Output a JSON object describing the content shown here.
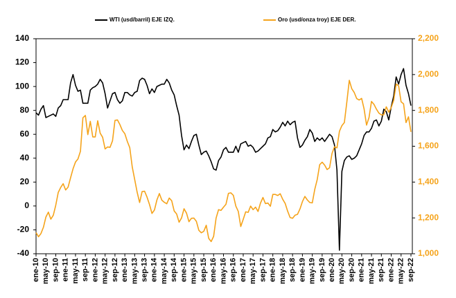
{
  "chart_data": {
    "type": "line",
    "categories": [
      "ene-10",
      null,
      null,
      null,
      "may-10",
      null,
      null,
      null,
      "sep-10",
      null,
      null,
      null,
      "ene-11",
      null,
      null,
      null,
      "may-11",
      null,
      null,
      null,
      "sep-11",
      null,
      null,
      null,
      "ene-12",
      null,
      null,
      null,
      "may-12",
      null,
      null,
      null,
      "sep-12",
      null,
      null,
      null,
      "ene-13",
      null,
      null,
      null,
      "may-13",
      null,
      null,
      null,
      "sep-13",
      null,
      null,
      null,
      "ene-14",
      null,
      null,
      null,
      "may-14",
      null,
      null,
      null,
      "sep-14",
      null,
      null,
      null,
      "ene-15",
      null,
      null,
      null,
      "may-15",
      null,
      null,
      null,
      "sep-15",
      null,
      null,
      null,
      "ene-16",
      null,
      null,
      null,
      "may-16",
      null,
      null,
      null,
      "sep-16",
      null,
      null,
      null,
      "ene-17",
      null,
      null,
      null,
      "may-17",
      null,
      null,
      null,
      "sep-17",
      null,
      null,
      null,
      "ene-18",
      null,
      null,
      null,
      "may-18",
      null,
      null,
      null,
      "sep-18",
      null,
      null,
      null,
      "ene-19",
      null,
      null,
      null,
      "may-19",
      null,
      null,
      null,
      "sep-19",
      null,
      null,
      null,
      "ene-20",
      null,
      null,
      null,
      "may-20",
      null,
      null,
      null,
      "sep-20",
      null,
      null,
      null,
      "ene-21",
      null,
      null,
      null,
      "may-21",
      null,
      null,
      null,
      "sep-21",
      null,
      null,
      null,
      "ene-22",
      null,
      null,
      null,
      "may-22",
      null,
      null,
      null,
      "sep-22"
    ],
    "series": [
      {
        "name": "WTI (usd/barril) EJE IZQ.",
        "color": "#000000",
        "axis": "y",
        "values": [
          78,
          76,
          81,
          84,
          74,
          75,
          76,
          77,
          75,
          82,
          84,
          89,
          89,
          89,
          103,
          110,
          101,
          96,
          97,
          86,
          86,
          86,
          97,
          99,
          100,
          102,
          106,
          103,
          94,
          82,
          88,
          94,
          95,
          89,
          86,
          88,
          95,
          95,
          93,
          92,
          95,
          96,
          105,
          107,
          106,
          101,
          94,
          98,
          95,
          100,
          101,
          102,
          102,
          106,
          103,
          97,
          93,
          84,
          76,
          59,
          47,
          51,
          48,
          54,
          59,
          60,
          51,
          43,
          45,
          46,
          42,
          37,
          31,
          30,
          38,
          41,
          47,
          49,
          45,
          45,
          45,
          50,
          45,
          52,
          53,
          54,
          50,
          51,
          49,
          45,
          46,
          48,
          50,
          52,
          57,
          58,
          64,
          62,
          63,
          66,
          70,
          67,
          71,
          68,
          70,
          71,
          57,
          49,
          51,
          55,
          58,
          64,
          61,
          54,
          57,
          55,
          57,
          54,
          57,
          60,
          58,
          51,
          30,
          -37,
          29,
          38,
          41,
          42,
          39,
          40,
          42,
          47,
          52,
          59,
          62,
          62,
          65,
          71,
          72,
          67,
          71,
          81,
          79,
          72,
          83,
          92,
          108,
          102,
          110,
          115,
          101,
          94,
          84
        ]
      },
      {
        "name": "Oro (usd/onza troy) EJE DER.",
        "color": "#f5a31a",
        "axis": "y2",
        "values": [
          1118,
          1095,
          1113,
          1148,
          1205,
          1232,
          1193,
          1215,
          1271,
          1342,
          1370,
          1391,
          1356,
          1372,
          1424,
          1474,
          1512,
          1529,
          1572,
          1759,
          1772,
          1665,
          1739,
          1652,
          1652,
          1742,
          1673,
          1650,
          1585,
          1596,
          1594,
          1630,
          1744,
          1747,
          1721,
          1688,
          1670,
          1627,
          1592,
          1485,
          1414,
          1343,
          1286,
          1347,
          1349,
          1316,
          1275,
          1225,
          1244,
          1300,
          1336,
          1299,
          1287,
          1279,
          1311,
          1296,
          1239,
          1222,
          1176,
          1200,
          1251,
          1227,
          1179,
          1198,
          1199,
          1181,
          1131,
          1117,
          1125,
          1159,
          1086,
          1068,
          1097,
          1199,
          1246,
          1242,
          1260,
          1276,
          1337,
          1340,
          1326,
          1266,
          1236,
          1152,
          1192,
          1234,
          1231,
          1266,
          1246,
          1260,
          1236,
          1283,
          1314,
          1280,
          1283,
          1265,
          1331,
          1331,
          1325,
          1335,
          1304,
          1281,
          1238,
          1202,
          1198,
          1215,
          1220,
          1250,
          1291,
          1320,
          1300,
          1286,
          1284,
          1359,
          1414,
          1497,
          1511,
          1495,
          1470,
          1480,
          1560,
          1597,
          1591,
          1683,
          1715,
          1732,
          1846,
          1968,
          1921,
          1900,
          1866,
          1858,
          1867,
          1808,
          1718,
          1760,
          1850,
          1834,
          1807,
          1785,
          1775,
          1776,
          1820,
          1790,
          1816,
          1856,
          1947,
          1937,
          1848,
          1837,
          1732,
          1764,
          1680
        ]
      }
    ],
    "ylim": [
      -40,
      140
    ],
    "yticks": [
      -40,
      -20,
      0,
      20,
      40,
      60,
      80,
      100,
      120,
      140
    ],
    "y2lim": [
      1000,
      2200
    ],
    "y2ticks": [
      {
        "value": 1000,
        "label": "1,000"
      },
      {
        "value": 1200,
        "label": "1,200"
      },
      {
        "value": 1400,
        "label": "1,400"
      },
      {
        "value": 1600,
        "label": "1,600"
      },
      {
        "value": 1800,
        "label": "1,800"
      },
      {
        "value": 2000,
        "label": "2,000"
      },
      {
        "value": 2200,
        "label": "2,200"
      }
    ],
    "y2color": "#f5a31a",
    "grid": false,
    "legend": "top"
  }
}
